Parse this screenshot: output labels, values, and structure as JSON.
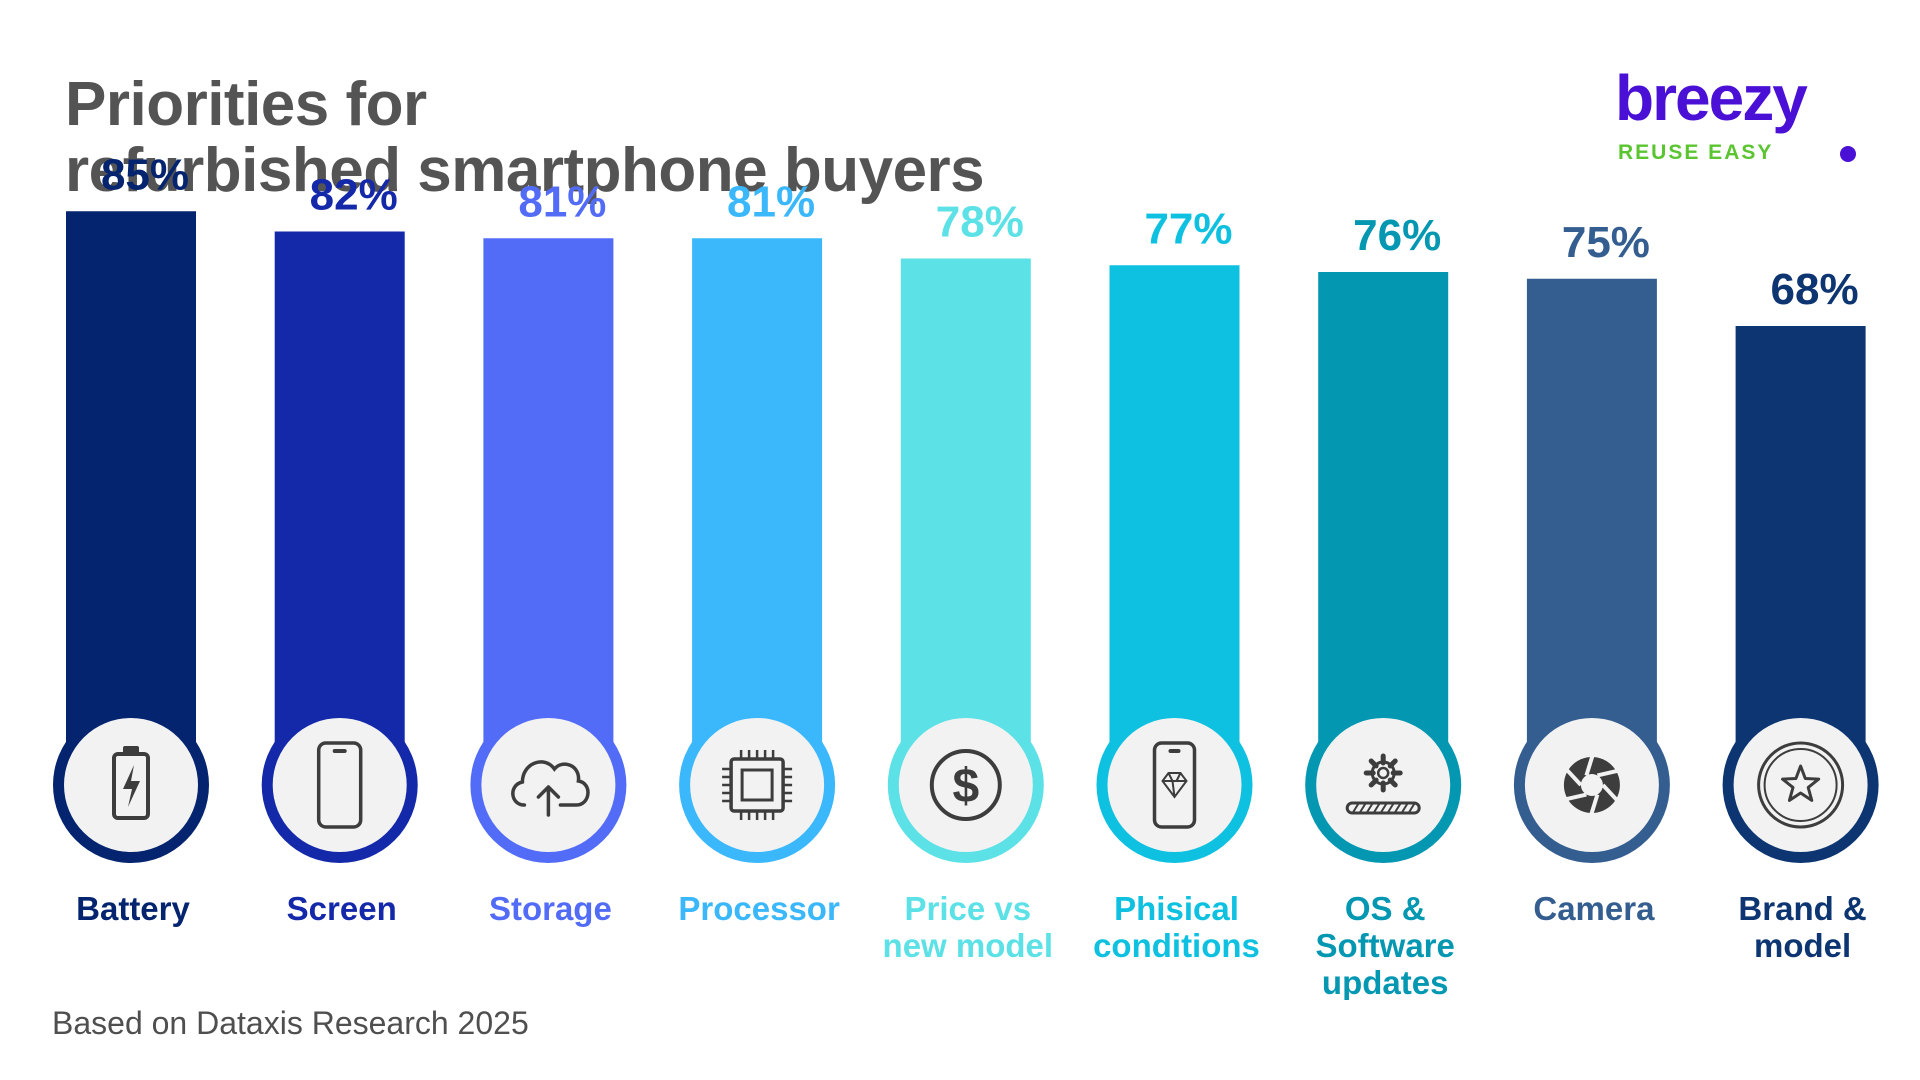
{
  "header": {
    "title_line1": "Priorities for",
    "title_line2": "refurbished smartphone buyers"
  },
  "logo": {
    "wordmark": "breezy",
    "tagline": "REUSE EASY",
    "colors": {
      "wordmark": "#4a10d6",
      "tagline": "#5bc531"
    }
  },
  "footnote": "Based on Dataxis Research 2025",
  "chart_data": {
    "type": "bar",
    "unit": "%",
    "categories": [
      [
        "Battery"
      ],
      [
        "Screen"
      ],
      [
        "Storage"
      ],
      [
        "Processor"
      ],
      [
        "Price vs",
        "new model"
      ],
      [
        "Phisical",
        "conditions"
      ],
      [
        "OS &",
        "Software",
        "updates"
      ],
      [
        "Camera"
      ],
      [
        "Brand &",
        "model"
      ]
    ],
    "values": [
      85,
      82,
      81,
      81,
      78,
      77,
      76,
      75,
      68
    ],
    "value_labels": [
      "85%",
      "82%",
      "81%",
      "81%",
      "78%",
      "77%",
      "76%",
      "75%",
      "68%"
    ],
    "colors": [
      "#04246f",
      "#1428aa",
      "#536cf7",
      "#3bb8fc",
      "#5ce1e6",
      "#0fc1e0",
      "#0497b2",
      "#345e90",
      "#0c3571"
    ],
    "icons": [
      "battery-icon",
      "phone-screen-icon",
      "cloud-upload-icon",
      "processor-chip-icon",
      "dollar-icon",
      "phone-diamond-icon",
      "gear-progress-icon",
      "camera-aperture-icon",
      "star-badge-icon"
    ],
    "ylim": [
      0,
      100
    ],
    "grid": false,
    "legend": "none"
  }
}
